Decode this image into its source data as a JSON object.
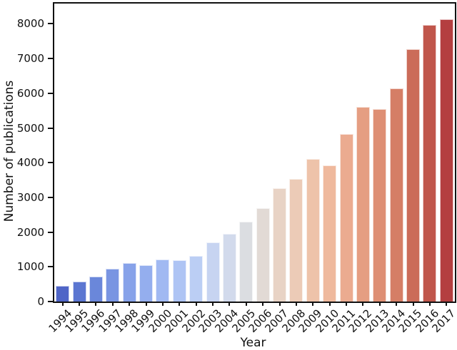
{
  "figure": {
    "background": "#ffffff",
    "spine_color": "#111111",
    "text_color": "#111111"
  },
  "chart_data": {
    "type": "bar",
    "title": "",
    "xlabel": "Year",
    "ylabel": "Number of publications",
    "categories": [
      "1994",
      "1995",
      "1996",
      "1997",
      "1998",
      "1999",
      "2000",
      "2001",
      "2002",
      "2003",
      "2004",
      "2005",
      "2006",
      "2007",
      "2008",
      "2009",
      "2010",
      "2011",
      "2012",
      "2013",
      "2014",
      "2015",
      "2016",
      "2017"
    ],
    "values": [
      460,
      575,
      720,
      955,
      1100,
      1045,
      1215,
      1190,
      1305,
      1695,
      1950,
      2310,
      2700,
      3270,
      3540,
      4110,
      3930,
      4830,
      5600,
      5550,
      6150,
      7280,
      7960,
      8140
    ],
    "bar_colors": [
      "#4F65C7",
      "#5B76D1",
      "#6A87DA",
      "#7995E2",
      "#87A2E9",
      "#94AEEE",
      "#A1B9F2",
      "#AEC4F4",
      "#BBCEF4",
      "#C7D4F1",
      "#D2DAEC",
      "#DBDDE1",
      "#E2DAD5",
      "#E8D3C5",
      "#ECCBB7",
      "#EEC3AA",
      "#EFB99D",
      "#EBAB90",
      "#E59E82",
      "#DE8F74",
      "#D57E66",
      "#CB6C59",
      "#C0564B",
      "#B43F40"
    ],
    "colormap": "coolwarm",
    "ylim": [
      0,
      8585
    ],
    "yticks": [
      0,
      1000,
      2000,
      3000,
      4000,
      5000,
      6000,
      7000,
      8000
    ],
    "x_tick_rotation": 45,
    "grid": false,
    "legend": "none"
  }
}
